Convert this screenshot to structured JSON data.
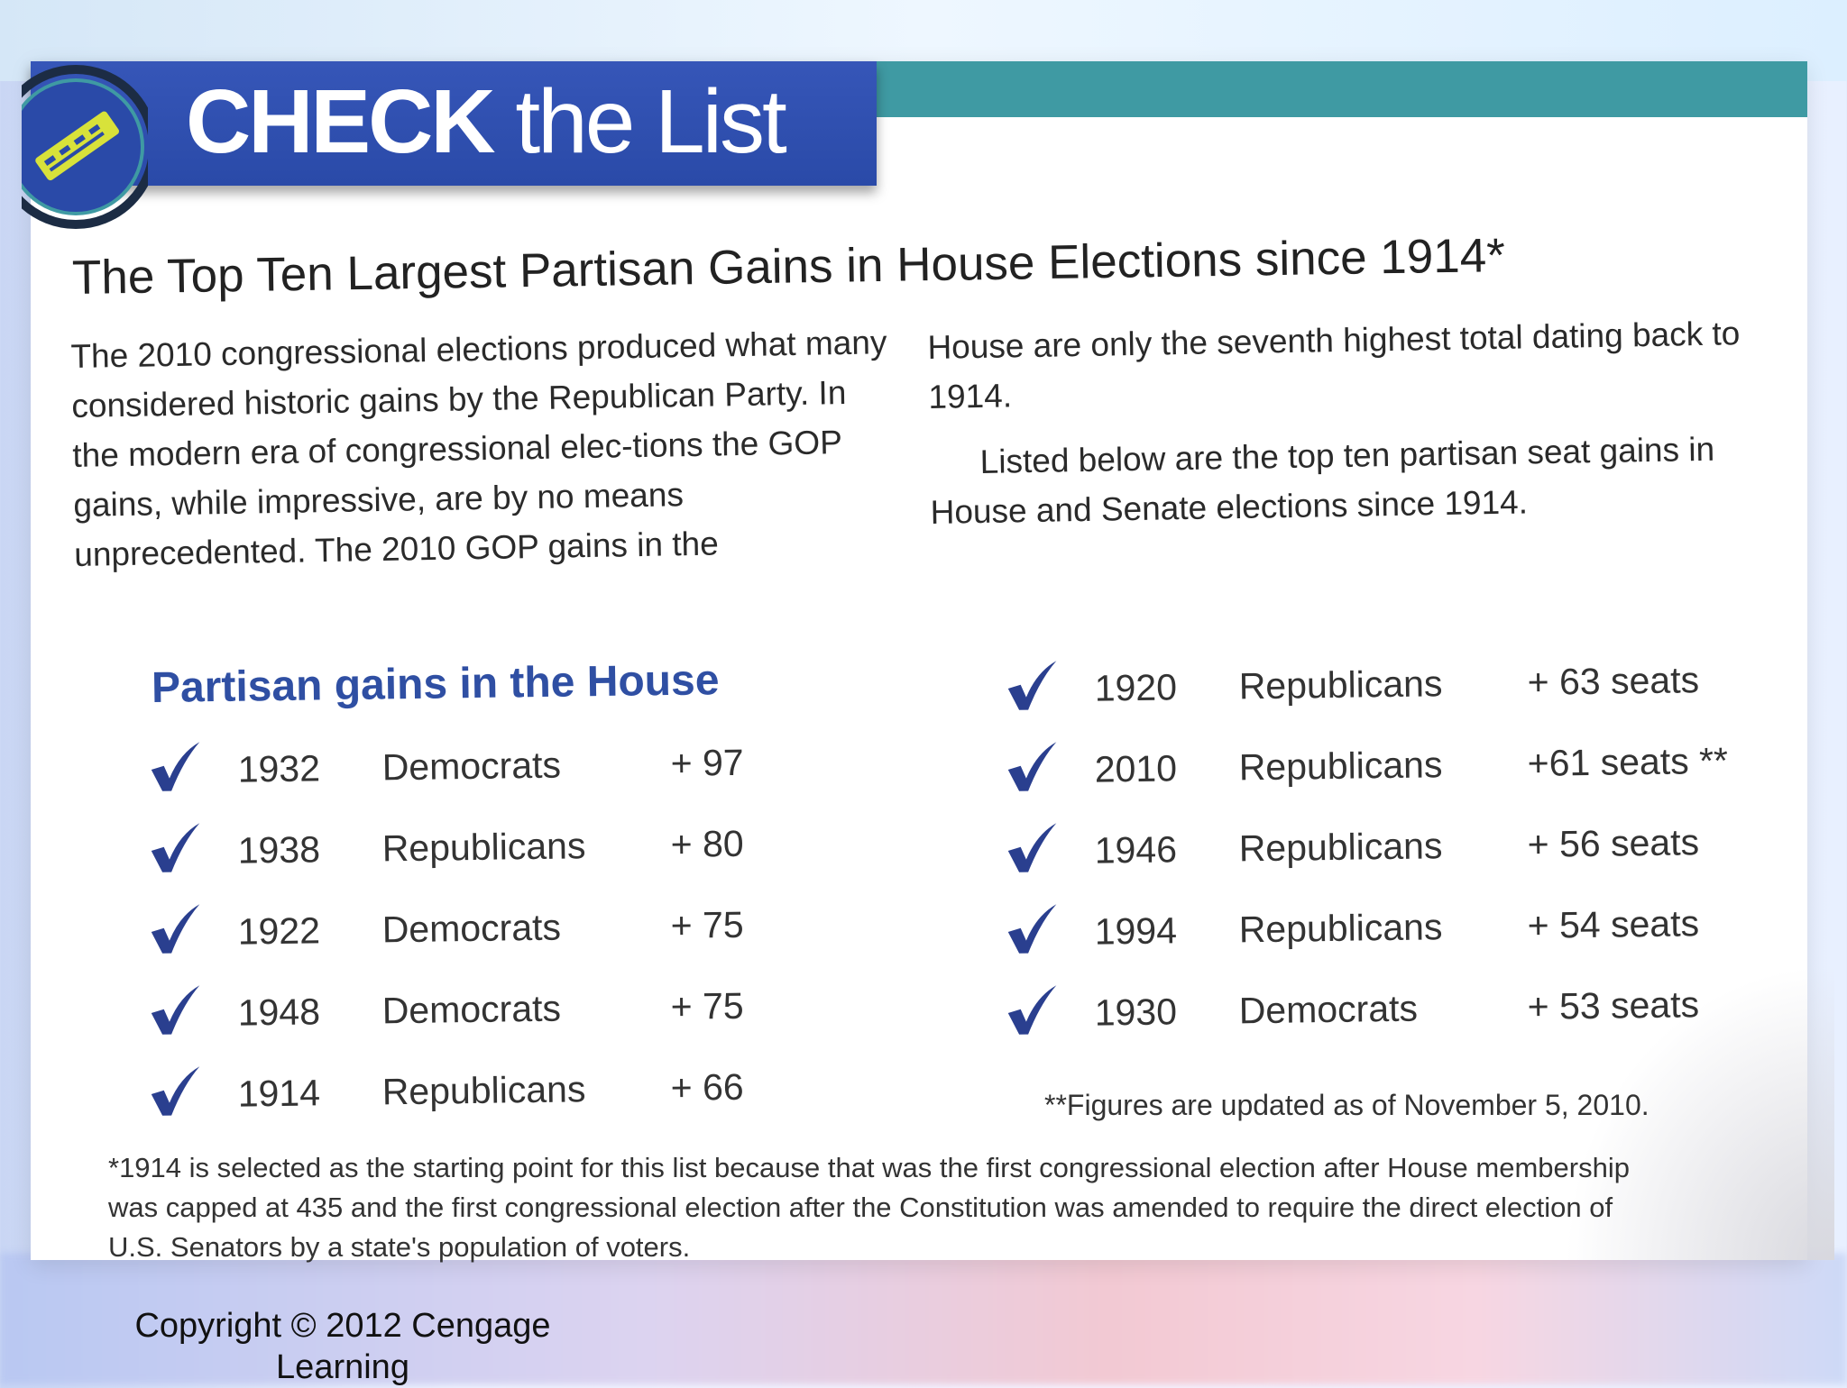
{
  "banner": {
    "title_bold": "CHECK",
    "title_light": " the List"
  },
  "headline": "The Top Ten Largest Partisan Gains in House Elections since 1914*",
  "intro": {
    "left": "The 2010 congressional elections produced what many considered historic gains by the Republican Party.  In the modern era of congressional elec-tions the GOP gains, while impressive, are by no means unprecedented. The 2010 GOP gains in the",
    "right_1": "House are only the seventh highest total dating back to 1914.",
    "right_2": "Listed below are the top ten partisan seat gains in House and Senate elections since 1914."
  },
  "section_title": "Partisan gains in the House",
  "left_list": [
    {
      "year": "1932",
      "party": "Democrats",
      "gain": "+ 97"
    },
    {
      "year": "1938",
      "party": "Republicans",
      "gain": "+ 80"
    },
    {
      "year": "1922",
      "party": "Democrats",
      "gain": "+ 75"
    },
    {
      "year": "1948",
      "party": "Democrats",
      "gain": "+ 75"
    },
    {
      "year": "1914",
      "party": "Republicans",
      "gain": "+ 66"
    }
  ],
  "right_list": [
    {
      "year": "1920",
      "party": "Republicans",
      "gain": "+ 63 seats"
    },
    {
      "year": "2010",
      "party": "Republicans",
      "gain": "+61 seats **"
    },
    {
      "year": "1946",
      "party": "Republicans",
      "gain": "+ 56 seats"
    },
    {
      "year": "1994",
      "party": "Republicans",
      "gain": "+ 54 seats"
    },
    {
      "year": "1930",
      "party": "Democrats",
      "gain": "+ 53 seats"
    }
  ],
  "note_right": "**Figures are updated as of November 5, 2010.",
  "footnote": "*1914 is selected as the starting point for this list because that was the first congressional election after House membership was capped at 435 and the first congressional election after the Constitution was amended to require the direct election of U.S. Senators by a state's population of voters.",
  "copyright": "Copyright © 2012 Cengage Learning",
  "colors": {
    "banner_blue": "#2f4fae",
    "accent_teal": "#3f9aa3",
    "check_blue": "#2a3f8f",
    "section_title_blue": "#2f4fa3"
  },
  "icons": {
    "check": "checkmark-icon",
    "logo": "ballot-logo-icon"
  }
}
